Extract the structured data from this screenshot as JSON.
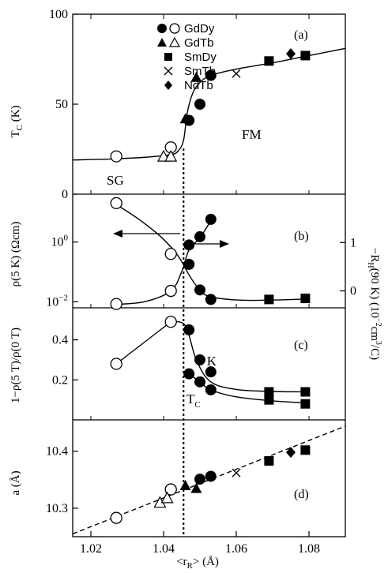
{
  "colors": {
    "ink": "#000000",
    "background": "#ffffff"
  },
  "chart_data": [
    {
      "panel": "(a)",
      "type": "scatter",
      "ylabel": "T_C (K)",
      "xlim": [
        1.015,
        1.09
      ],
      "ylim": [
        0,
        100
      ],
      "yticks": [
        "0",
        "50",
        "100"
      ],
      "legend": {
        "placement": "top-left",
        "entries": [
          {
            "label": "GdDy",
            "markers": [
              "filled-circle",
              "open-circle"
            ]
          },
          {
            "label": "GdTb",
            "markers": [
              "filled-triangle",
              "open-triangle"
            ]
          },
          {
            "label": "SmDy",
            "markers": [
              "filled-square"
            ]
          },
          {
            "label": "SmTb",
            "markers": [
              "cross"
            ]
          },
          {
            "label": "NdTb",
            "markers": [
              "filled-diamond"
            ]
          }
        ]
      },
      "annotations": [
        "SG",
        "FM"
      ],
      "series": [
        {
          "name": "GdDy",
          "marker": "open-circle",
          "x": [
            1.027,
            1.042
          ],
          "y": [
            21,
            26
          ]
        },
        {
          "name": "GdTb",
          "marker": "open-triangle",
          "x": [
            1.04,
            1.042
          ],
          "y": [
            21,
            21
          ]
        },
        {
          "name": "GdDy",
          "marker": "filled-circle",
          "x": [
            1.047,
            1.05,
            1.053
          ],
          "y": [
            41,
            50,
            66
          ]
        },
        {
          "name": "GdTb",
          "marker": "filled-triangle",
          "x": [
            1.046,
            1.049
          ],
          "y": [
            42,
            65
          ]
        },
        {
          "name": "SmDy",
          "marker": "filled-square",
          "x": [
            1.069,
            1.079
          ],
          "y": [
            74,
            77
          ]
        },
        {
          "name": "SmTb",
          "marker": "cross",
          "x": [
            1.06
          ],
          "y": [
            67
          ]
        },
        {
          "name": "NdTb",
          "marker": "filled-diamond",
          "x": [
            1.075
          ],
          "y": [
            78
          ]
        }
      ],
      "guide_line": {
        "x": [
          1.015,
          1.025,
          1.035,
          1.042,
          1.044,
          1.0455,
          1.0465,
          1.048,
          1.05,
          1.053,
          1.06,
          1.07,
          1.08,
          1.09
        ],
        "y": [
          19,
          19.5,
          20.5,
          22,
          24,
          30,
          45,
          56,
          62,
          66,
          69.5,
          73,
          77,
          81
        ]
      }
    },
    {
      "panel": "(b)",
      "type": "scatter",
      "ylabel": "ρ(5 K) (Ωcm)",
      "ylabel_right": "−R_H(90 K) (10^−2 cm^3/C)",
      "yscale": "log",
      "ylim": [
        0.0063,
        40
      ],
      "yticks": [
        "10^−2",
        "10^0"
      ],
      "ylim_right": [
        -0.35,
        2.0
      ],
      "yticks_right": [
        "0",
        "1"
      ],
      "series": [
        {
          "name": "ρ(5 K)",
          "axis": "left",
          "marker": "open-circle",
          "x": [
            1.027,
            1.042
          ],
          "y": [
            20,
            0.4
          ]
        },
        {
          "name": "ρ(5 K)",
          "axis": "left",
          "marker": "filled-circle",
          "x": [
            1.047,
            1.05,
            1.053
          ],
          "y": [
            0.18,
            0.025,
            0.012
          ]
        },
        {
          "name": "ρ(5 K)",
          "axis": "left",
          "marker": "filled-square",
          "x": [
            1.069,
            1.079
          ],
          "y": [
            0.012,
            0.013
          ]
        },
        {
          "name": "−R_H(90 K)",
          "axis": "right",
          "marker": "open-circle",
          "x": [
            1.027,
            1.042
          ],
          "y": [
            -0.27,
            0.0
          ]
        },
        {
          "name": "−R_H(90 K)",
          "axis": "right",
          "marker": "filled-circle",
          "x": [
            1.047,
            1.05,
            1.053
          ],
          "y": [
            0.95,
            1.12,
            1.48
          ]
        }
      ],
      "guide_lines": [
        {
          "axis": "left",
          "x": [
            1.027,
            1.033,
            1.039,
            1.043,
            1.045,
            1.047,
            1.049,
            1.052,
            1.06,
            1.07,
            1.08
          ],
          "y": [
            18,
            6,
            1.6,
            0.5,
            0.22,
            0.08,
            0.035,
            0.016,
            0.0115,
            0.0115,
            0.0125
          ]
        },
        {
          "axis": "right",
          "x": [
            1.027,
            1.035,
            1.042,
            1.045,
            1.047,
            1.05,
            1.053
          ],
          "y": [
            -0.28,
            -0.22,
            0.0,
            0.4,
            0.85,
            1.1,
            1.45
          ]
        }
      ]
    },
    {
      "panel": "(c)",
      "type": "line",
      "ylabel": "1−ρ(5 T)/ρ(0 T)",
      "ylim": [
        0,
        0.56
      ],
      "yticks": [
        "0.2",
        "0.4"
      ],
      "annotations": [
        "5 K",
        "T_C"
      ],
      "series": [
        {
          "name": "5 K",
          "marker": "open-circle",
          "x": [
            1.027,
            1.042
          ],
          "y": [
            0.28,
            0.49
          ]
        },
        {
          "name": "5 K",
          "marker": "filled-circle",
          "x": [
            1.047,
            1.05,
            1.053
          ],
          "y": [
            0.45,
            0.3,
            0.24
          ]
        },
        {
          "name": "5 K",
          "marker": "filled-square",
          "x": [
            1.069,
            1.079
          ],
          "y": [
            0.14,
            0.14
          ]
        },
        {
          "name": "T_C",
          "marker": "filled-circle",
          "x": [
            1.047,
            1.05,
            1.053
          ],
          "y": [
            0.23,
            0.19,
            0.15
          ]
        },
        {
          "name": "T_C",
          "marker": "filled-square",
          "x": [
            1.069,
            1.079
          ],
          "y": [
            0.1,
            0.08
          ]
        }
      ],
      "guide_lines": [
        {
          "x": [
            1.027,
            1.042
          ],
          "y": [
            0.28,
            0.49
          ]
        },
        {
          "x": [
            1.042,
            1.046,
            1.049,
            1.053,
            1.06,
            1.07,
            1.079
          ],
          "y": [
            0.49,
            0.47,
            0.3,
            0.19,
            0.152,
            0.142,
            0.14
          ]
        },
        {
          "x": [
            1.047,
            1.05,
            1.053,
            1.06,
            1.07,
            1.079
          ],
          "y": [
            0.23,
            0.19,
            0.15,
            0.115,
            0.095,
            0.085
          ]
        }
      ]
    },
    {
      "panel": "(d)",
      "type": "scatter",
      "ylabel": "a (Å)",
      "xlabel": "<r_R> (Å)",
      "ylim": [
        10.25,
        10.455
      ],
      "yticks": [
        "10.3",
        "10.4"
      ],
      "xticks": [
        "1.02",
        "1.04",
        "1.06",
        "1.08"
      ],
      "series": [
        {
          "name": "GdDy",
          "marker": "open-circle",
          "x": [
            1.027,
            1.042
          ],
          "y": [
            10.283,
            10.333
          ]
        },
        {
          "name": "GdTb",
          "marker": "open-triangle",
          "x": [
            1.039,
            1.041
          ],
          "y": [
            10.31,
            10.318
          ]
        },
        {
          "name": "GdDy",
          "marker": "filled-circle",
          "x": [
            1.05,
            1.053
          ],
          "y": [
            10.351,
            10.356
          ]
        },
        {
          "name": "GdTb",
          "marker": "filled-triangle",
          "x": [
            1.046,
            1.049
          ],
          "y": [
            10.34,
            10.335
          ]
        },
        {
          "name": "SmDy",
          "marker": "filled-square",
          "x": [
            1.069,
            1.079
          ],
          "y": [
            10.383,
            10.402
          ]
        },
        {
          "name": "SmTb",
          "marker": "cross",
          "x": [
            1.06
          ],
          "y": [
            10.362
          ]
        },
        {
          "name": "NdTb",
          "marker": "filled-diamond",
          "x": [
            1.075
          ],
          "y": [
            10.398
          ]
        }
      ],
      "fit_line": {
        "x": [
          1.015,
          1.09
        ],
        "y": [
          10.255,
          10.444
        ],
        "style": "dashed"
      }
    }
  ],
  "shared": {
    "xlim": [
      1.015,
      1.09
    ],
    "vertical_marker": {
      "x": 1.0455,
      "style": "dotted"
    }
  }
}
